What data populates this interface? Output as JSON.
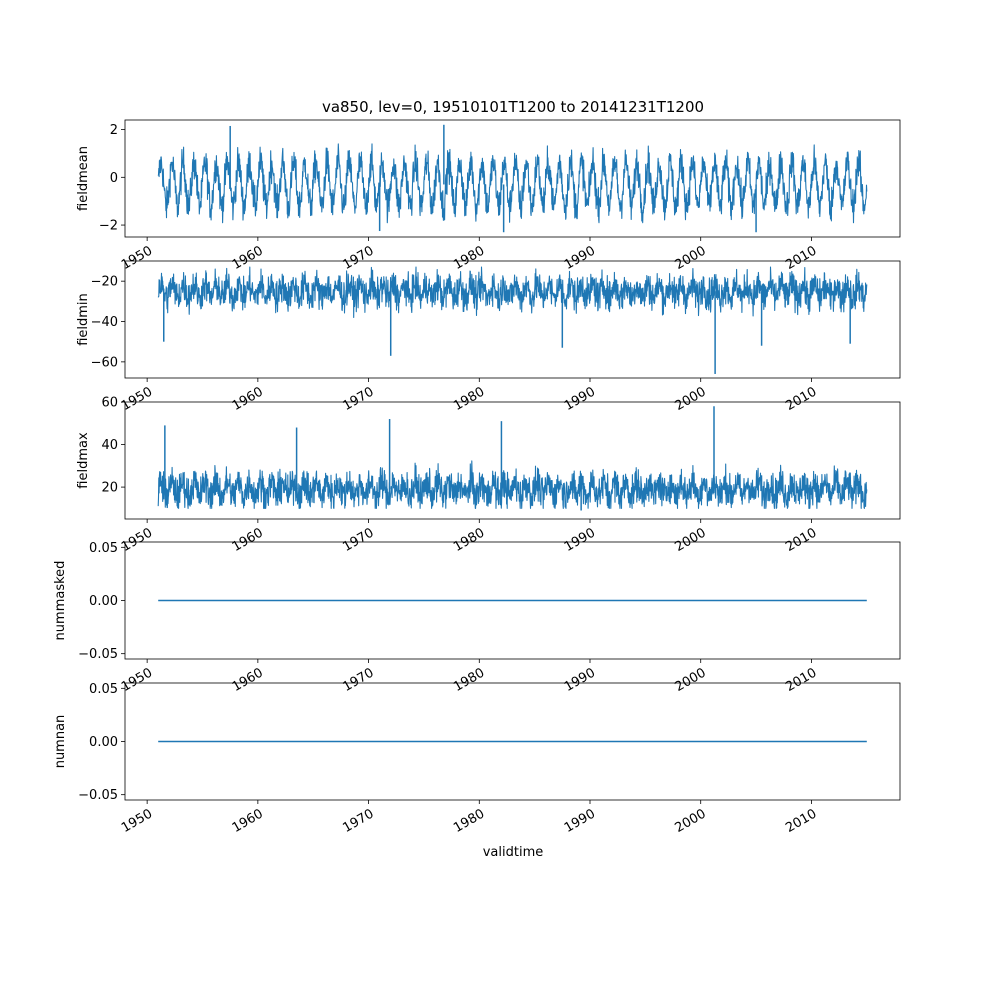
{
  "chart_data": {
    "type": "line",
    "title": "va850, lev=0, 19510101T1200 to 20141231T1200",
    "xlabel": "validtime",
    "x_range": [
      "1951-01-01",
      "2014-12-31"
    ],
    "xlim": [
      1948,
      2018
    ],
    "x_ticks": [
      1950,
      1960,
      1970,
      1980,
      1990,
      2000,
      2010
    ],
    "color": "#1f77b4",
    "panels": [
      {
        "ylabel": "fieldmean",
        "ylim": [
          -2.5,
          2.4
        ],
        "y_ticks": [
          -2,
          0,
          2
        ],
        "baseline": -0.3,
        "typical_range": [
          -1.9,
          1.4
        ],
        "seasonal_amplitude": 0.9,
        "noise": 0.35,
        "extremes": [
          {
            "year": 1957.5,
            "value": 2.15
          },
          {
            "year": 1976.8,
            "value": 2.2
          },
          {
            "year": 1971.0,
            "value": -2.25
          },
          {
            "year": 1982.2,
            "value": -2.3
          },
          {
            "year": 2005.0,
            "value": -2.3
          }
        ]
      },
      {
        "ylabel": "fieldmin",
        "ylim": [
          -68,
          -10
        ],
        "y_ticks": [
          -60,
          -40,
          -20
        ],
        "baseline": -25,
        "typical_range": [
          -38,
          -13
        ],
        "seasonal_amplitude": 3,
        "noise": 4,
        "extremes": [
          {
            "year": 1951.5,
            "value": -50
          },
          {
            "year": 1972.0,
            "value": -57
          },
          {
            "year": 1987.5,
            "value": -53
          },
          {
            "year": 2001.3,
            "value": -66
          },
          {
            "year": 2005.5,
            "value": -52
          },
          {
            "year": 2013.5,
            "value": -51
          }
        ]
      },
      {
        "ylabel": "fieldmax",
        "ylim": [
          5,
          60
        ],
        "y_ticks": [
          20,
          40,
          60
        ],
        "baseline": 19,
        "typical_range": [
          10,
          36
        ],
        "seasonal_amplitude": 3,
        "noise": 4,
        "extremes": [
          {
            "year": 1951.6,
            "value": 49
          },
          {
            "year": 1963.5,
            "value": 48
          },
          {
            "year": 1971.9,
            "value": 52
          },
          {
            "year": 1982.0,
            "value": 51
          },
          {
            "year": 2001.2,
            "value": 58
          },
          {
            "year": 1989.2,
            "value": 9
          }
        ]
      },
      {
        "ylabel": "nummasked",
        "ylim": [
          -0.055,
          0.055
        ],
        "y_ticks": [
          -0.05,
          0.0,
          0.05
        ],
        "y_tick_labels": [
          "−0.05",
          "0.00",
          "0.05"
        ],
        "constant": 0
      },
      {
        "ylabel": "numnan",
        "ylim": [
          -0.055,
          0.055
        ],
        "y_ticks": [
          -0.05,
          0.0,
          0.05
        ],
        "y_tick_labels": [
          "−0.05",
          "0.00",
          "0.05"
        ],
        "constant": 0
      }
    ]
  }
}
